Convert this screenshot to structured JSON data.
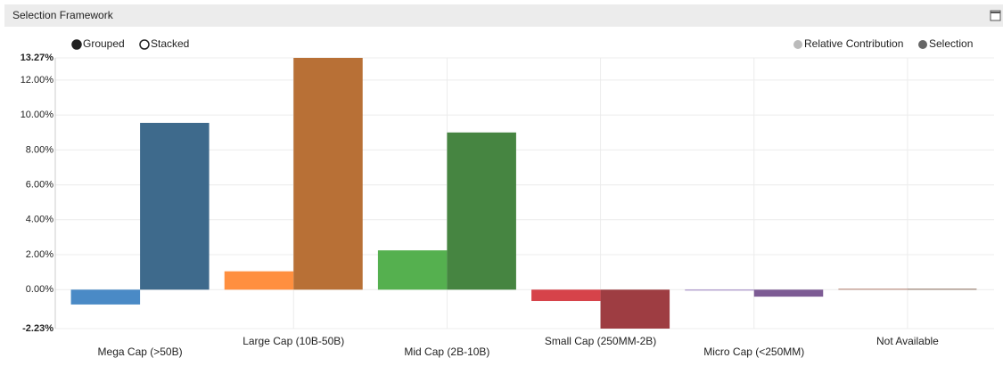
{
  "panel": {
    "title": "Selection Framework"
  },
  "chart_data": {
    "type": "bar",
    "mode_options": [
      "Grouped",
      "Stacked"
    ],
    "selected_mode": 0,
    "categories": [
      "Mega Cap (>50B)",
      "Large Cap (10B-50B)",
      "Mid Cap (2B-10B)",
      "Small Cap (250MM-2B)",
      "Micro Cap (<250MM)",
      "Not Available"
    ],
    "series": [
      {
        "name": "Relative Contribution",
        "color": "#bbbbbb",
        "colors": [
          "#4a8ac6",
          "#ff8f3f",
          "#55b04f",
          "#d6434a",
          "#9a80c0",
          "#b07a6a"
        ],
        "values": [
          -0.85,
          1.05,
          2.25,
          -0.65,
          -0.05,
          0.05
        ]
      },
      {
        "name": "Selection",
        "color": "#666666",
        "colors": [
          "#3e6a8c",
          "#b87036",
          "#468541",
          "#9e3d42",
          "#7d5b94",
          "#8a6a5a"
        ],
        "values": [
          9.55,
          13.27,
          9.0,
          -2.23,
          -0.4,
          0.05
        ]
      }
    ],
    "ylim": [
      -2.23,
      13.27
    ],
    "yticks": [
      {
        "value": -2.23,
        "label": "-2.23%"
      },
      {
        "value": 0,
        "label": "0.00%"
      },
      {
        "value": 2,
        "label": "2.00%"
      },
      {
        "value": 4,
        "label": "4.00%"
      },
      {
        "value": 6,
        "label": "6.00%"
      },
      {
        "value": 8,
        "label": "8.00%"
      },
      {
        "value": 10,
        "label": "10.00%"
      },
      {
        "value": 12,
        "label": "12.00%"
      },
      {
        "value": 13.27,
        "label": "13.27%"
      }
    ],
    "grid": true,
    "legend": "top-right"
  }
}
